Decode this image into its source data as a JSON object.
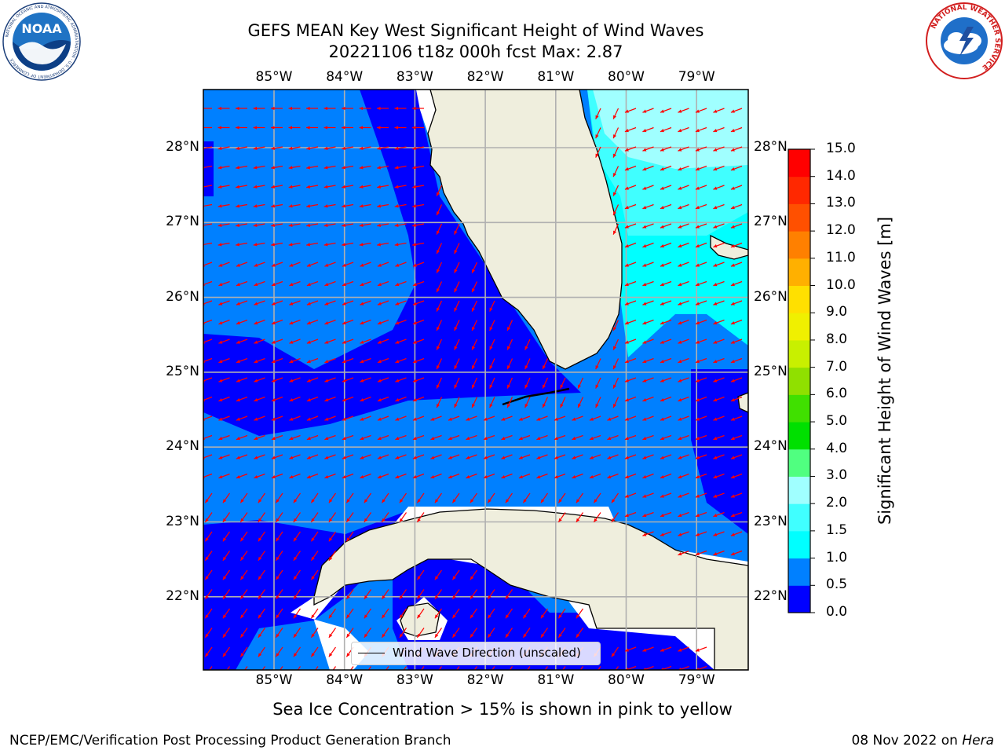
{
  "title": {
    "line1": "GEFS MEAN Key West Significant Height of Wind Waves",
    "line2": "20221106 t18z 000h fcst   Max: 2.87"
  },
  "map": {
    "lon_labels": [
      "85°W",
      "84°W",
      "83°W",
      "82°W",
      "81°W",
      "80°W",
      "79°W"
    ],
    "lat_labels": [
      "28°N",
      "27°N",
      "26°N",
      "25°N",
      "24°N",
      "23°N",
      "22°N"
    ],
    "legend_label": "Wind Wave Direction (unscaled)",
    "arrow_color": "#ff0000",
    "land_color": "#efeedd",
    "coast_color": "#000000",
    "grid_color": "#b0b0b0"
  },
  "colorbar": {
    "label": "Significant Height of Wind Waves [m]",
    "levels": [
      "0.0",
      "0.5",
      "1.0",
      "1.5",
      "2.0",
      "3.0",
      "4.0",
      "5.0",
      "6.0",
      "7.0",
      "8.0",
      "9.0",
      "10.0",
      "11.0",
      "12.0",
      "13.0",
      "14.0",
      "15.0"
    ],
    "colors": [
      "#0000ff",
      "#0080ff",
      "#00ffff",
      "#40ffff",
      "#a0ffff",
      "#50ff80",
      "#00e000",
      "#40e000",
      "#90e000",
      "#c8f000",
      "#f0f000",
      "#ffe000",
      "#ffb000",
      "#ff8000",
      "#ff5000",
      "#ff2800",
      "#ff0000"
    ]
  },
  "notes": {
    "ice": "Sea Ice Concentration > 15% is shown in pink to yellow"
  },
  "footer": {
    "left": "NCEP/EMC/Verification Post Processing Product Generation Branch",
    "right_date": "08 Nov 2022 on",
    "right_host": "Hera"
  },
  "logos": {
    "noaa": "NOAA",
    "noaa_ring": "NATIONAL OCEANIC AND ATMOSPHERIC ADMINISTRATION · U.S. DEPARTMENT OF COMMERCE",
    "nws_ring": "NATIONAL WEATHER SERVICE"
  }
}
